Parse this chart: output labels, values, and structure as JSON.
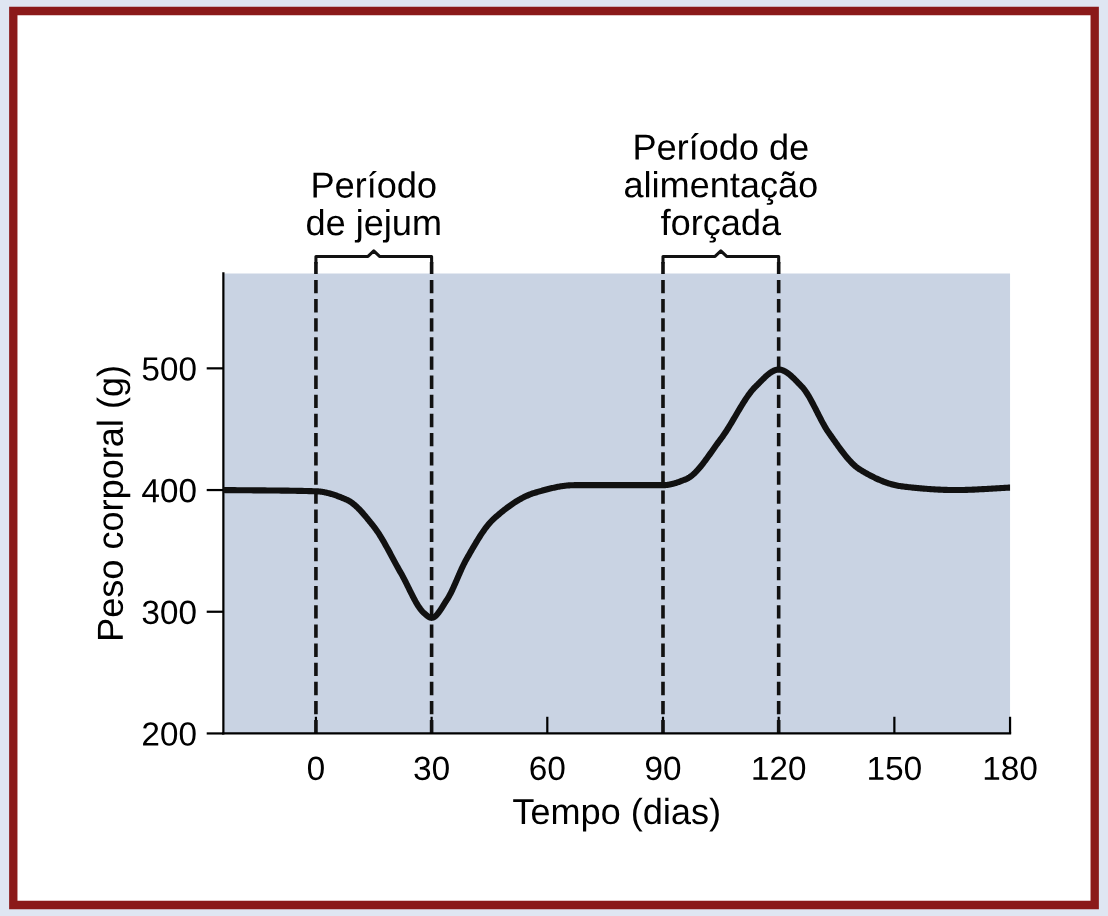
{
  "chart_data": {
    "type": "line",
    "xlabel": "Tempo (dias)",
    "ylabel": "Peso corporal (g)",
    "x": [
      -24,
      0,
      8,
      15,
      22,
      28,
      30,
      34,
      39,
      46,
      57,
      67,
      90,
      96,
      105,
      114,
      120,
      126,
      133,
      141,
      152,
      166,
      180
    ],
    "series": [
      {
        "color": "#111111",
        "values": [
          400,
          399,
          392,
          370,
          332,
          299,
          295,
          310,
          343,
          376,
          398,
          404,
          404,
          409,
          442,
          485,
          499,
          485,
          447,
          417,
          403,
          400,
          402
        ]
      }
    ],
    "xlim": [
      -24,
      180
    ],
    "xticks": [
      0,
      30,
      60,
      90,
      120,
      150,
      180
    ],
    "ylim": [
      200,
      578
    ],
    "yticks": [
      200,
      300,
      400,
      500
    ],
    "ref_lines": [
      {
        "axis": "x",
        "value": 0,
        "line_style": "dashed",
        "color": "#111111"
      },
      {
        "axis": "x",
        "value": 30,
        "line_style": "dashed",
        "color": "#111111"
      },
      {
        "axis": "x",
        "value": 90,
        "line_style": "dashed",
        "color": "#111111"
      },
      {
        "axis": "x",
        "value": 120,
        "line_style": "dashed",
        "color": "#111111"
      }
    ],
    "annotations": [
      "Período\nde jejum",
      "Período de\nalimentação\nforçada"
    ],
    "grid": false,
    "legend": false,
    "marker": "none",
    "line_style": "solid"
  }
}
